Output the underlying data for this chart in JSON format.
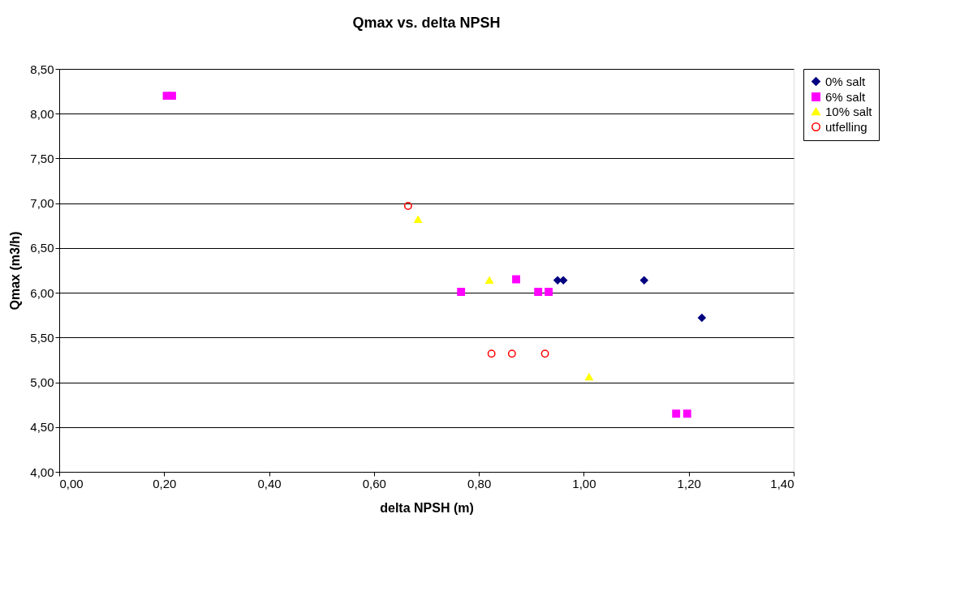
{
  "chart_data": {
    "type": "scatter",
    "title": "Qmax vs. delta NPSH",
    "xlabel": "delta NPSH (m)",
    "ylabel": "Qmax (m3/h)",
    "xlim": [
      0,
      1.4
    ],
    "xticks": [
      {
        "value": 0,
        "label": "0,00"
      },
      {
        "value": 0.2,
        "label": "0,20"
      },
      {
        "value": 0.4,
        "label": "0,40"
      },
      {
        "value": 0.6,
        "label": "0,60"
      },
      {
        "value": 0.8,
        "label": "0,80"
      },
      {
        "value": 1.0,
        "label": "1,00"
      },
      {
        "value": 1.2,
        "label": "1,20"
      },
      {
        "value": 1.4,
        "label": "1,40"
      }
    ],
    "ylim": [
      4,
      8.5
    ],
    "yticks": [
      {
        "value": 4,
        "label": "4,00"
      },
      {
        "value": 4.5,
        "label": "4,50"
      },
      {
        "value": 5,
        "label": "5,00"
      },
      {
        "value": 5.5,
        "label": "5,50"
      },
      {
        "value": 6,
        "label": "6,00"
      },
      {
        "value": 6.5,
        "label": "6,50"
      },
      {
        "value": 7,
        "label": "7,00"
      },
      {
        "value": 7.5,
        "label": "7,50"
      },
      {
        "value": 8,
        "label": "8,00"
      },
      {
        "value": 8.5,
        "label": "8,50"
      }
    ],
    "grid": "y",
    "legend": "right",
    "series": [
      {
        "name": "0% salt",
        "color": "#000080",
        "marker": "diamond",
        "x": [
          0.95,
          0.961,
          1.115,
          1.225
        ],
        "values": [
          6.14,
          6.14,
          6.14,
          5.72
        ]
      },
      {
        "name": "6% salt",
        "color": "#ff00ff",
        "marker": "square",
        "x": [
          0.205,
          0.215,
          0.766,
          0.871,
          0.913,
          0.933,
          1.176,
          1.197
        ],
        "values": [
          8.2,
          8.2,
          6.01,
          6.15,
          6.01,
          6.01,
          4.65,
          4.65
        ]
      },
      {
        "name": "10% salt",
        "color": "#ffff00",
        "marker": "triangle",
        "x": [
          0.684,
          0.82,
          1.01
        ],
        "values": [
          6.82,
          6.14,
          5.06
        ]
      },
      {
        "name": "utfelling",
        "color": "#ff0000",
        "marker": "circle",
        "x": [
          0.665,
          0.824,
          0.863,
          0.926
        ],
        "values": [
          6.97,
          5.32,
          5.32,
          5.32
        ]
      }
    ]
  }
}
